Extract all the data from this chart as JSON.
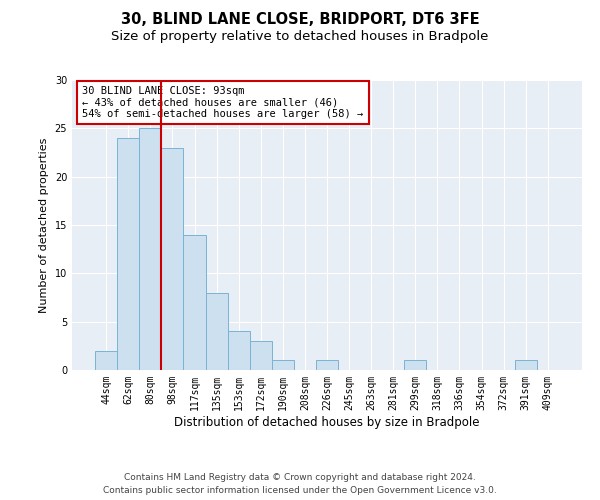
{
  "title": "30, BLIND LANE CLOSE, BRIDPORT, DT6 3FE",
  "subtitle": "Size of property relative to detached houses in Bradpole",
  "xlabel": "Distribution of detached houses by size in Bradpole",
  "ylabel": "Number of detached properties",
  "footer_line1": "Contains HM Land Registry data © Crown copyright and database right 2024.",
  "footer_line2": "Contains public sector information licensed under the Open Government Licence v3.0.",
  "bin_labels": [
    "44sqm",
    "62sqm",
    "80sqm",
    "98sqm",
    "117sqm",
    "135sqm",
    "153sqm",
    "172sqm",
    "190sqm",
    "208sqm",
    "226sqm",
    "245sqm",
    "263sqm",
    "281sqm",
    "299sqm",
    "318sqm",
    "336sqm",
    "354sqm",
    "372sqm",
    "391sqm",
    "409sqm"
  ],
  "bar_values": [
    2,
    24,
    25,
    23,
    14,
    8,
    4,
    3,
    1,
    0,
    1,
    0,
    0,
    0,
    1,
    0,
    0,
    0,
    0,
    1,
    0
  ],
  "bar_color": "#cce0f0",
  "bar_edge_color": "#7ab3d4",
  "vline_color": "#cc0000",
  "annotation_box_text": "30 BLIND LANE CLOSE: 93sqm\n← 43% of detached houses are smaller (46)\n54% of semi-detached houses are larger (58) →",
  "box_edge_color": "#cc0000",
  "ylim": [
    0,
    30
  ],
  "yticks": [
    0,
    5,
    10,
    15,
    20,
    25,
    30
  ],
  "plot_bg_color": "#e8eef5",
  "fig_bg_color": "#ffffff",
  "grid_color": "#ffffff",
  "title_fontsize": 10.5,
  "subtitle_fontsize": 9.5,
  "xlabel_fontsize": 8.5,
  "ylabel_fontsize": 8,
  "tick_fontsize": 7,
  "annotation_fontsize": 7.5,
  "footer_fontsize": 6.5
}
